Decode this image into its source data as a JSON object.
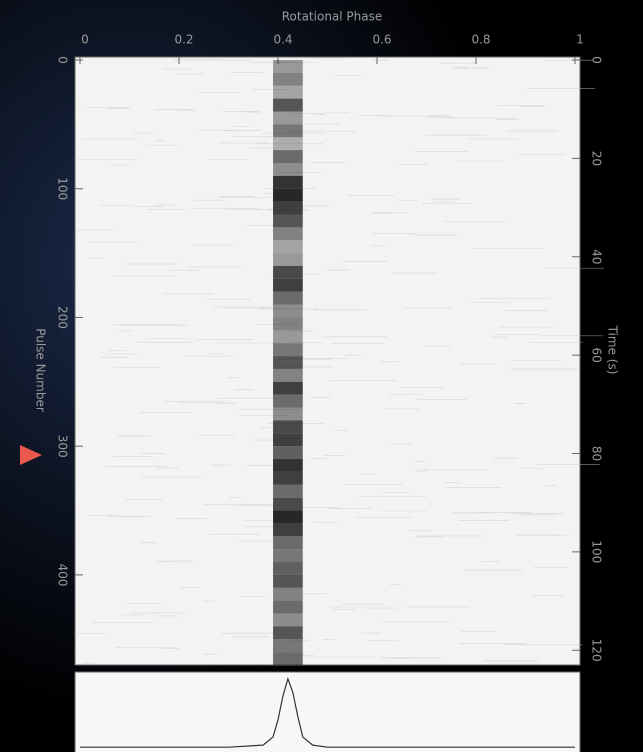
{
  "chart_data": [
    {
      "type": "heatmap",
      "xlabel": "Rotational Phase",
      "ylabel": "Pulse Number",
      "y2label": "Time (s)",
      "xlim": [
        0,
        1
      ],
      "xticks": [
        0,
        0.2,
        0.4,
        0.6,
        0.8,
        1
      ],
      "ylim": [
        0,
        470
      ],
      "yticks": [
        0,
        100,
        200,
        300,
        400
      ],
      "y2lim": [
        0,
        123
      ],
      "y2ticks": [
        0,
        20,
        40,
        60,
        80,
        100,
        120
      ],
      "window": [
        0.39,
        0.45
      ],
      "color": "#111111",
      "rows": [
        0,
        10,
        20,
        30,
        40,
        50,
        60,
        70,
        80,
        90,
        100,
        110,
        120,
        130,
        140,
        150,
        160,
        170,
        180,
        190,
        200,
        210,
        220,
        230,
        240,
        250,
        260,
        270,
        280,
        290,
        300,
        310,
        320,
        330,
        340,
        350,
        360,
        370,
        380,
        390,
        400,
        410,
        420,
        430,
        440,
        450,
        460
      ],
      "values": [
        0.4,
        0.5,
        0.35,
        0.7,
        0.4,
        0.55,
        0.3,
        0.6,
        0.45,
        0.85,
        0.9,
        0.8,
        0.7,
        0.5,
        0.35,
        0.4,
        0.75,
        0.8,
        0.6,
        0.45,
        0.5,
        0.4,
        0.55,
        0.7,
        0.5,
        0.8,
        0.6,
        0.45,
        0.75,
        0.8,
        0.65,
        0.85,
        0.8,
        0.6,
        0.75,
        0.9,
        0.8,
        0.6,
        0.55,
        0.65,
        0.7,
        0.5,
        0.6,
        0.45,
        0.7,
        0.55,
        0.6
      ]
    },
    {
      "type": "line",
      "xlim": [
        0,
        1
      ],
      "ylim": [
        -0.1,
        1.1
      ],
      "color": "#333333",
      "x": [
        0,
        0.3,
        0.37,
        0.39,
        0.4,
        0.41,
        0.42,
        0.43,
        0.44,
        0.45,
        0.47,
        0.5,
        1
      ],
      "values": [
        0,
        0,
        0.03,
        0.15,
        0.4,
        0.75,
        1,
        0.8,
        0.45,
        0.15,
        0.03,
        0,
        0
      ]
    }
  ]
}
